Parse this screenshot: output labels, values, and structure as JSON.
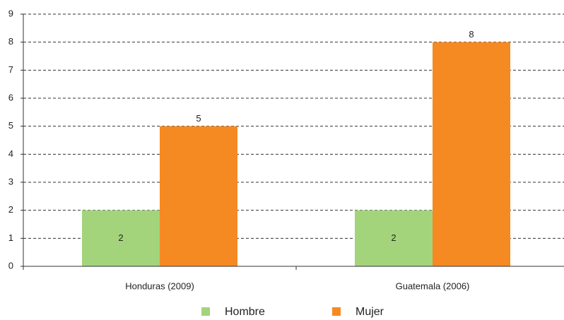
{
  "chart_data": {
    "type": "bar",
    "categories": [
      "Honduras (2009)",
      "Guatemala (2006)"
    ],
    "series": [
      {
        "name": "Hombre",
        "color": "#a3d47b",
        "values": [
          2,
          2
        ]
      },
      {
        "name": "Mujer",
        "color": "#f58a22",
        "values": [
          5,
          8
        ]
      }
    ],
    "ylim": [
      0,
      9
    ],
    "yticks": [
      0,
      1,
      2,
      3,
      4,
      5,
      6,
      7,
      8,
      9
    ],
    "grid": true,
    "legend": "bottom"
  }
}
